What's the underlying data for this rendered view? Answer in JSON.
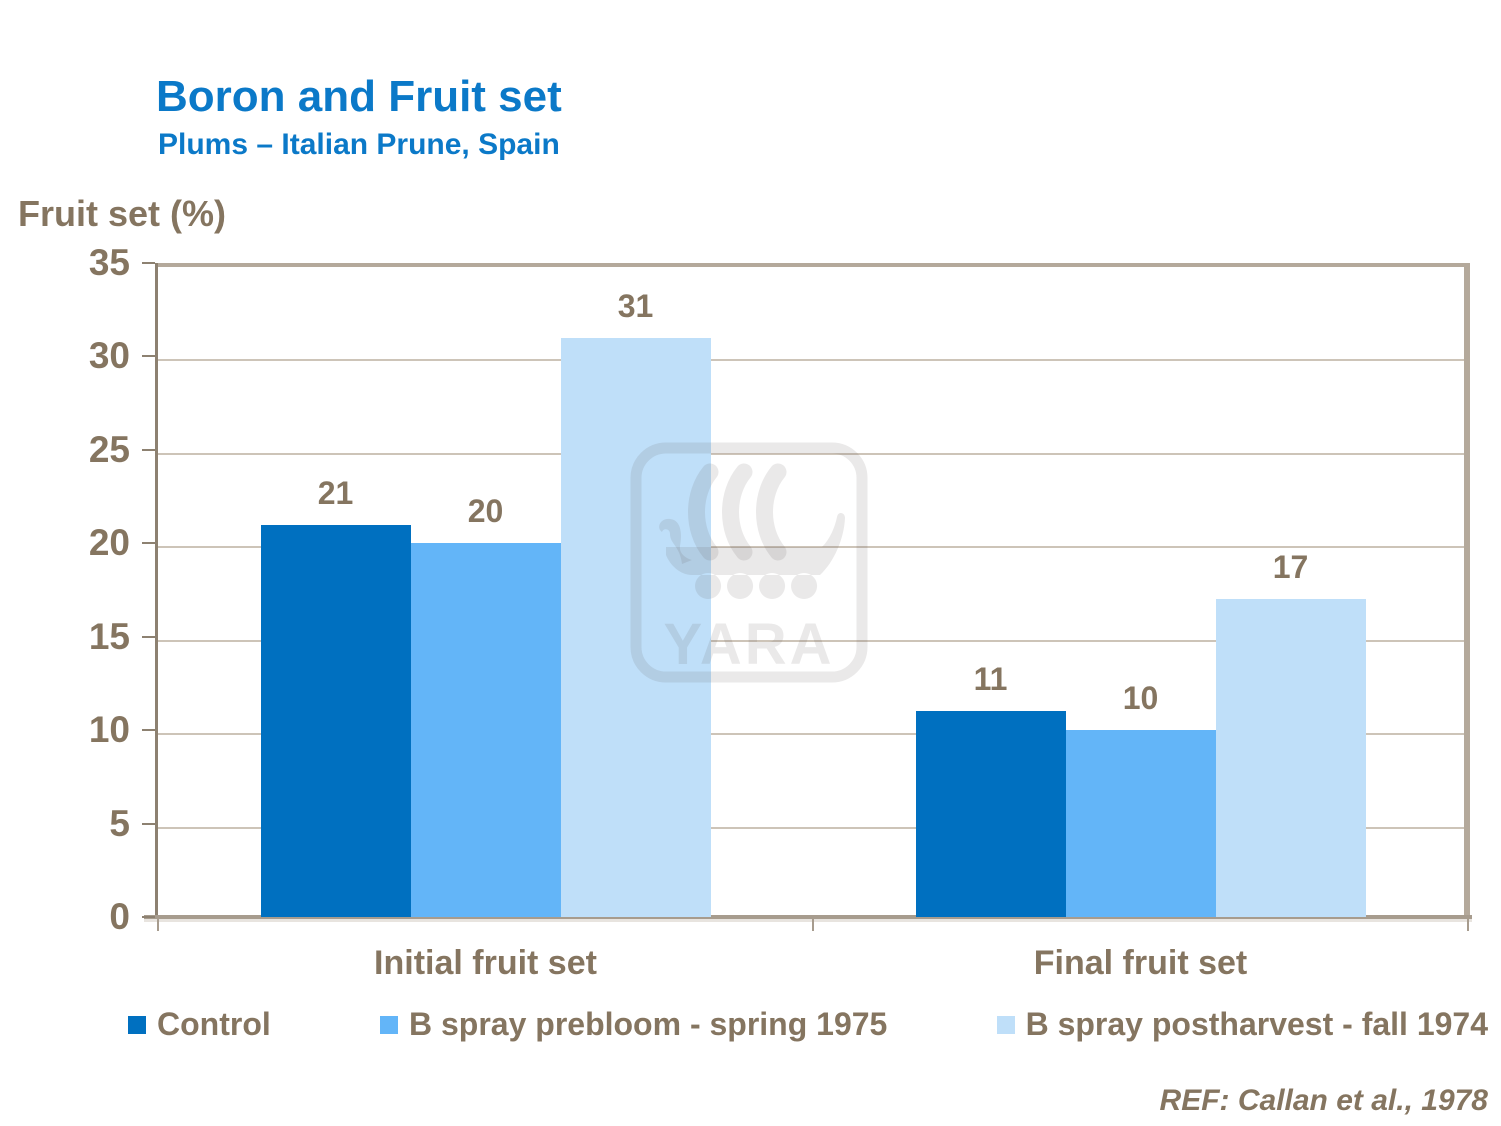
{
  "slide": {
    "title": "Boron and Fruit set",
    "subtitle": "Plums – Italian Prune, Spain",
    "reference": "REF: Callan et al., 1978",
    "watermark_text": "YARA",
    "watermark_icon": "viking-ship-icon"
  },
  "chart_data": {
    "type": "bar",
    "title": "Boron and Fruit set",
    "subtitle": "Plums – Italian Prune, Spain",
    "ylabel": "Fruit set (%)",
    "xlabel": "",
    "categories": [
      "Initial fruit set",
      "Final fruit set"
    ],
    "series": [
      {
        "name": "Control",
        "color": "#0070c0",
        "values": [
          21,
          11
        ]
      },
      {
        "name": "B spray prebloom - spring 1975",
        "color": "#63b5f8",
        "values": [
          20,
          10
        ]
      },
      {
        "name": "B spray postharvest - fall 1974",
        "color": "#bfdff9",
        "values": [
          31,
          17
        ]
      }
    ],
    "ylim": [
      0,
      35
    ],
    "yticks": [
      0,
      5,
      10,
      15,
      20,
      25,
      30,
      35
    ],
    "grid": true,
    "legend_position": "bottom",
    "data_labels": true
  },
  "colors": {
    "title_blue": "#0b79c8",
    "text_brown": "#857560",
    "gridline": "#cdc4b8",
    "axis": "#a79c8e",
    "axis_dark": "#8d8171",
    "frame": "#b4a99b",
    "background": "#ffffff"
  }
}
